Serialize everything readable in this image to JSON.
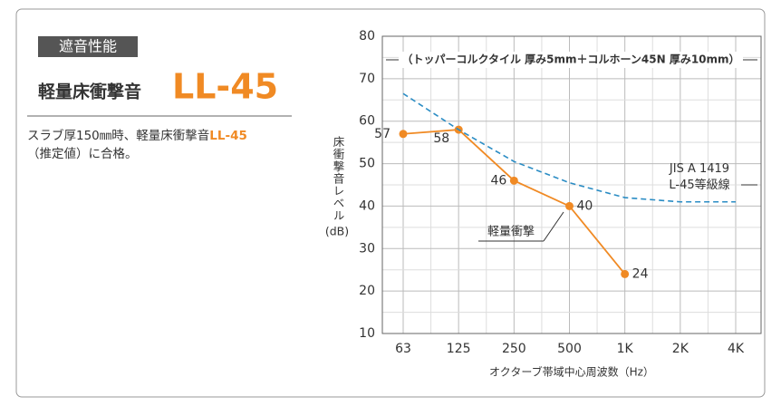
{
  "panel": {
    "badge": "遮音性能",
    "title": "軽量床衝撃音",
    "title_mark": "LL-45",
    "text_before": "スラブ厚150㎜時、軽量床衝撃音",
    "text_mark": "LL-45",
    "text_after": "（推定値）に合格。"
  },
  "chart_data": {
    "type": "line",
    "annotation": "（トッパーコルクタイル 厚み5mm＋コルホーン45N 厚み10mm）",
    "ylabel": "床衝撃音レベル",
    "yunit": "(dB)",
    "xlabel": "オクターブ帯域中心周波数（Hz）",
    "categories": [
      "63",
      "125",
      "250",
      "500",
      "1K",
      "2K",
      "4K"
    ],
    "series": [
      {
        "name": "軽量衝撃",
        "color": "#f08a24",
        "values": [
          57,
          58,
          46,
          40,
          24,
          null,
          null
        ],
        "dashed": false,
        "data_labels": true
      },
      {
        "name": "JIS A 1419\nL-45等級線",
        "color": "#2a8cc4",
        "values": [
          66.5,
          58,
          50.5,
          45.5,
          42,
          41,
          41
        ],
        "dashed": true,
        "data_labels": false
      }
    ],
    "ylim": [
      10,
      80
    ],
    "yticks": [
      10,
      20,
      30,
      40,
      50,
      60,
      70,
      80
    ],
    "grid": true
  }
}
